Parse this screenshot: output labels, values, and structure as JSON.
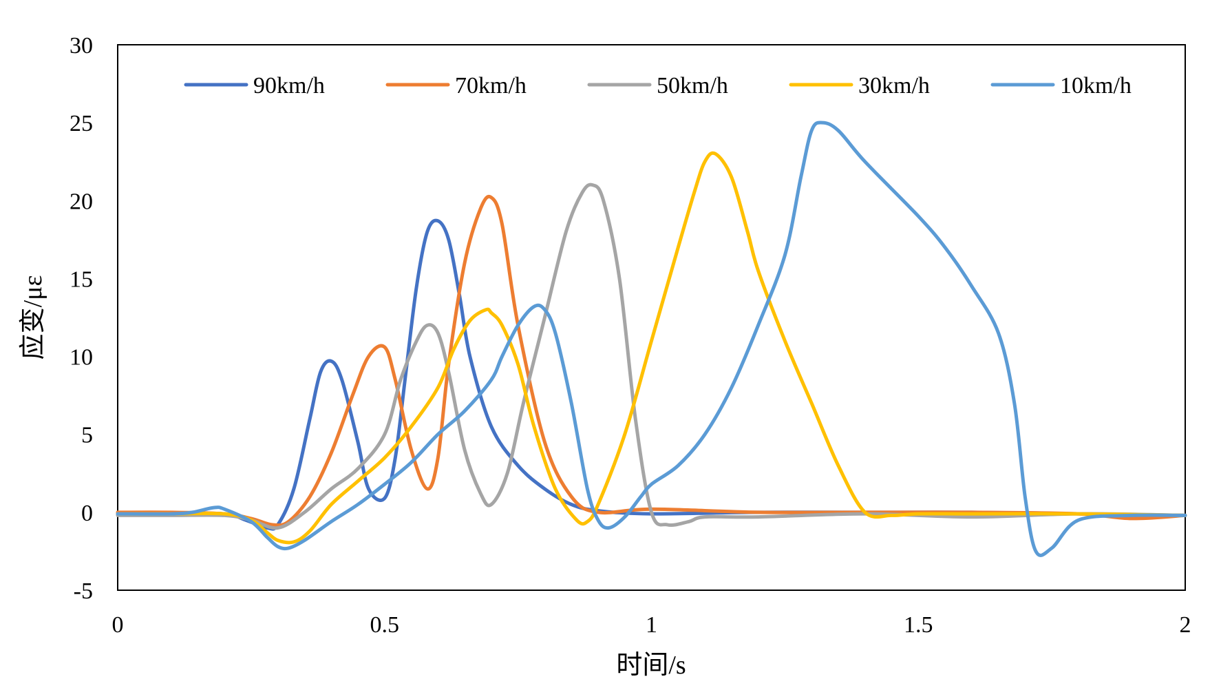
{
  "chart_data": {
    "type": "line",
    "title": "",
    "xlabel": "时间/s",
    "ylabel": "应变/με",
    "xlim": [
      0,
      2
    ],
    "ylim": [
      -5,
      30
    ],
    "xticks": [
      0,
      0.5,
      1,
      1.5,
      2
    ],
    "xtick_labels": [
      "0",
      "0.5",
      "1",
      "1.5",
      "2"
    ],
    "yticks": [
      -5,
      0,
      5,
      10,
      15,
      20,
      25,
      30
    ],
    "ytick_labels": [
      "-5",
      "0",
      "5",
      "10",
      "15",
      "20",
      "25",
      "30"
    ],
    "grid": false,
    "legend_position": "top",
    "series": [
      {
        "name": "90km/h",
        "color": "#4472C4",
        "x": [
          0,
          0.1,
          0.2,
          0.24,
          0.28,
          0.3,
          0.33,
          0.36,
          0.38,
          0.4,
          0.42,
          0.45,
          0.47,
          0.5,
          0.52,
          0.54,
          0.56,
          0.58,
          0.6,
          0.62,
          0.64,
          0.66,
          0.7,
          0.75,
          0.8,
          0.85,
          0.9,
          1.0,
          1.2,
          1.4,
          1.6,
          1.8,
          2.0
        ],
        "values": [
          -0.1,
          -0.1,
          -0.1,
          -0.5,
          -1.0,
          -0.8,
          1.5,
          6.0,
          9.0,
          9.7,
          8.5,
          4.5,
          1.5,
          0.9,
          3.5,
          9.0,
          14.5,
          18.0,
          18.7,
          17.5,
          14.0,
          10.0,
          5.5,
          3.0,
          1.5,
          0.5,
          0.1,
          -0.1,
          0.0,
          0.0,
          0.0,
          -0.1,
          -0.2
        ]
      },
      {
        "name": "70km/h",
        "color": "#ED7D31",
        "x": [
          0,
          0.1,
          0.2,
          0.25,
          0.29,
          0.32,
          0.36,
          0.4,
          0.44,
          0.47,
          0.5,
          0.52,
          0.55,
          0.58,
          0.6,
          0.62,
          0.65,
          0.68,
          0.7,
          0.72,
          0.75,
          0.8,
          0.85,
          0.9,
          1.0,
          1.2,
          1.4,
          1.6,
          1.8,
          1.9,
          2.0
        ],
        "values": [
          0.0,
          0.0,
          -0.1,
          -0.4,
          -0.8,
          -0.6,
          1.0,
          3.8,
          7.5,
          10.0,
          10.6,
          8.5,
          4.0,
          1.5,
          3.5,
          9.5,
          16.0,
          19.5,
          20.2,
          18.5,
          12.0,
          4.5,
          1.0,
          0.0,
          0.2,
          0.0,
          0.0,
          0.0,
          -0.1,
          -0.4,
          -0.2
        ]
      },
      {
        "name": "50km/h",
        "color": "#A5A5A5",
        "x": [
          0,
          0.1,
          0.2,
          0.25,
          0.3,
          0.35,
          0.4,
          0.45,
          0.5,
          0.53,
          0.56,
          0.58,
          0.6,
          0.62,
          0.65,
          0.68,
          0.7,
          0.73,
          0.76,
          0.8,
          0.84,
          0.87,
          0.89,
          0.91,
          0.94,
          0.97,
          1.0,
          1.03,
          1.07,
          1.1,
          1.2,
          1.4,
          1.6,
          1.8,
          2.0
        ],
        "values": [
          -0.2,
          -0.2,
          -0.2,
          -0.5,
          -1.0,
          0.0,
          1.5,
          2.8,
          5.0,
          8.5,
          11.0,
          12.0,
          11.5,
          9.0,
          4.0,
          1.2,
          0.5,
          2.5,
          7.0,
          12.5,
          18.0,
          20.5,
          21.0,
          20.0,
          15.0,
          6.0,
          0.0,
          -0.8,
          -0.6,
          -0.3,
          -0.3,
          -0.1,
          -0.3,
          -0.1,
          -0.2
        ]
      },
      {
        "name": "30km/h",
        "color": "#FFC000",
        "x": [
          0,
          0.1,
          0.2,
          0.25,
          0.28,
          0.3,
          0.33,
          0.36,
          0.4,
          0.45,
          0.5,
          0.55,
          0.6,
          0.63,
          0.66,
          0.69,
          0.7,
          0.72,
          0.75,
          0.78,
          0.82,
          0.86,
          0.88,
          0.9,
          0.95,
          1.0,
          1.05,
          1.08,
          1.1,
          1.12,
          1.15,
          1.18,
          1.2,
          1.25,
          1.3,
          1.35,
          1.4,
          1.45,
          1.5,
          1.6,
          1.8,
          2.0
        ],
        "values": [
          -0.1,
          -0.1,
          -0.1,
          -0.5,
          -1.3,
          -1.8,
          -1.9,
          -1.2,
          0.5,
          2.0,
          3.5,
          5.5,
          8.0,
          10.5,
          12.3,
          13.0,
          12.8,
          12.0,
          9.5,
          5.5,
          1.5,
          -0.5,
          -0.6,
          0.5,
          5.0,
          11.0,
          17.0,
          20.5,
          22.5,
          23.0,
          21.5,
          18.0,
          15.5,
          11.0,
          7.0,
          3.0,
          0.0,
          -0.2,
          -0.1,
          -0.1,
          -0.1,
          -0.2
        ]
      },
      {
        "name": "10km/h",
        "color": "#5B9BD5",
        "x": [
          0,
          0.1,
          0.14,
          0.18,
          0.2,
          0.25,
          0.28,
          0.3,
          0.32,
          0.35,
          0.4,
          0.45,
          0.5,
          0.55,
          0.6,
          0.65,
          0.7,
          0.72,
          0.75,
          0.78,
          0.8,
          0.82,
          0.85,
          0.88,
          0.9,
          0.92,
          0.95,
          0.98,
          1.0,
          1.05,
          1.1,
          1.15,
          1.2,
          1.25,
          1.28,
          1.3,
          1.32,
          1.35,
          1.4,
          1.5,
          1.55,
          1.6,
          1.65,
          1.68,
          1.7,
          1.72,
          1.75,
          1.8,
          1.9,
          2.0
        ],
        "values": [
          -0.1,
          -0.1,
          0.0,
          0.3,
          0.2,
          -0.6,
          -1.6,
          -2.2,
          -2.3,
          -1.8,
          -0.6,
          0.5,
          1.8,
          3.2,
          5.0,
          6.5,
          8.5,
          10.0,
          12.0,
          13.2,
          13.0,
          11.5,
          7.0,
          1.5,
          -0.5,
          -1.0,
          -0.3,
          1.0,
          1.8,
          3.0,
          5.0,
          8.0,
          12.0,
          16.5,
          21.5,
          24.5,
          25.0,
          24.5,
          22.5,
          19.0,
          17.0,
          14.5,
          11.5,
          7.0,
          1.0,
          -2.5,
          -2.3,
          -0.5,
          -0.2,
          -0.2
        ]
      }
    ]
  }
}
